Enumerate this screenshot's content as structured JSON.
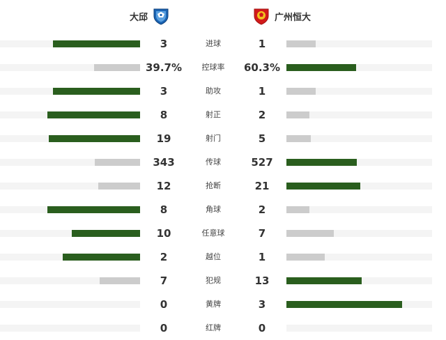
{
  "teams": {
    "home": {
      "name": "大邱",
      "logo": "daegu-fc-crest-icon",
      "color": "#2a5e1e"
    },
    "away": {
      "name": "广州恒大",
      "logo": "guangzhou-evergrande-crest-icon",
      "color": "#d21a1a"
    }
  },
  "colors": {
    "leader_bar": "#2a5e1e",
    "trailer_bar": "#cccccc",
    "track": "#f4f4f4"
  },
  "stats": [
    {
      "label": "进球",
      "home": "3",
      "away": "1",
      "home_share": 0.75,
      "away_share": 0.25
    },
    {
      "label": "控球率",
      "home": "39.7%",
      "away": "60.3%",
      "home_share": 0.397,
      "away_share": 0.603
    },
    {
      "label": "助攻",
      "home": "3",
      "away": "1",
      "home_share": 0.75,
      "away_share": 0.25
    },
    {
      "label": "射正",
      "home": "8",
      "away": "2",
      "home_share": 0.8,
      "away_share": 0.2
    },
    {
      "label": "射门",
      "home": "19",
      "away": "5",
      "home_share": 0.792,
      "away_share": 0.208
    },
    {
      "label": "传球",
      "home": "343",
      "away": "527",
      "home_share": 0.394,
      "away_share": 0.606
    },
    {
      "label": "抢断",
      "home": "12",
      "away": "21",
      "home_share": 0.364,
      "away_share": 0.636
    },
    {
      "label": "角球",
      "home": "8",
      "away": "2",
      "home_share": 0.8,
      "away_share": 0.2
    },
    {
      "label": "任意球",
      "home": "10",
      "away": "7",
      "home_share": 0.588,
      "away_share": 0.412
    },
    {
      "label": "越位",
      "home": "2",
      "away": "1",
      "home_share": 0.667,
      "away_share": 0.333
    },
    {
      "label": "犯规",
      "home": "7",
      "away": "13",
      "home_share": 0.35,
      "away_share": 0.65
    },
    {
      "label": "黄牌",
      "home": "0",
      "away": "3",
      "home_share": 0,
      "away_share": 1
    },
    {
      "label": "红牌",
      "home": "0",
      "away": "0",
      "home_share": 0,
      "away_share": 0
    }
  ]
}
